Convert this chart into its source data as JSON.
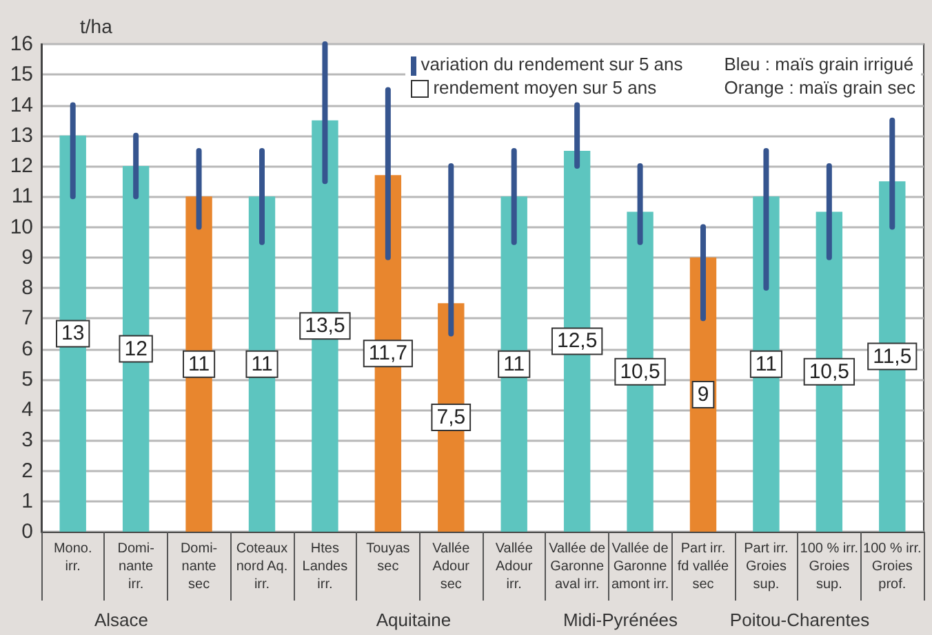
{
  "chart_data": {
    "type": "bar",
    "ylabel": "t/ha",
    "categories": [
      "Mono.\nirr.",
      "Domi-\nnante\nirr.",
      "Domi-\nnante\nsec",
      "Coteaux\nnord Aq.\nirr.",
      "Htes\nLandes\nirr.",
      "Touyas\nsec",
      "Vallée\nAdour\nsec",
      "Vallée\nAdour\nirr.",
      "Vallée de\nGaronne\naval irr.",
      "Vallée de\nGaronne\namont irr.",
      "Part irr.\nfd vallée\nsec",
      "Part irr.\nGroies\nsup.",
      "100 % irr.\nGroies\nsup.",
      "100 % irr.\nGroies\nprof."
    ],
    "values": [
      13,
      12,
      11,
      11,
      13.5,
      11.7,
      7.5,
      11,
      12.5,
      10.5,
      9,
      11,
      10.5,
      11.5
    ],
    "colors": [
      "#5dc5bf",
      "#5dc5bf",
      "#e8862e",
      "#5dc5bf",
      "#5dc5bf",
      "#e8862e",
      "#e8862e",
      "#5dc5bf",
      "#5dc5bf",
      "#5dc5bf",
      "#e8862e",
      "#5dc5bf",
      "#5dc5bf",
      "#5dc5bf"
    ],
    "errors": [
      [
        11,
        14
      ],
      [
        11,
        13
      ],
      [
        10,
        12.5
      ],
      [
        9.5,
        12.5
      ],
      [
        11.5,
        16
      ],
      [
        9,
        14.5
      ],
      [
        6.5,
        12
      ],
      [
        9.5,
        12.5
      ],
      [
        12,
        14
      ],
      [
        9.5,
        12
      ],
      [
        7,
        10
      ],
      [
        8,
        12.5
      ],
      [
        9,
        12
      ],
      [
        10,
        13.5
      ]
    ],
    "value_labels": [
      "13",
      "12",
      "11",
      "11",
      "13,5",
      "11,7",
      "7,5",
      "11",
      "12,5",
      "10,5",
      "9",
      "11",
      "10,5",
      "11,5"
    ],
    "ylim": [
      0,
      16
    ],
    "yticks": [
      0,
      1,
      2,
      3,
      4,
      5,
      6,
      7,
      8,
      9,
      10,
      11,
      12,
      13,
      14,
      15,
      16
    ],
    "grid": "y",
    "annotations": [
      "variation du rendement sur 5 ans",
      "rendement moyen sur 5 ans",
      "Bleu : maïs grain irrigué",
      "Orange : maïs grain sec",
      "Alsace",
      "Aquitaine",
      "Midi-Pyrénées",
      "Poitou-Charentes"
    ]
  }
}
